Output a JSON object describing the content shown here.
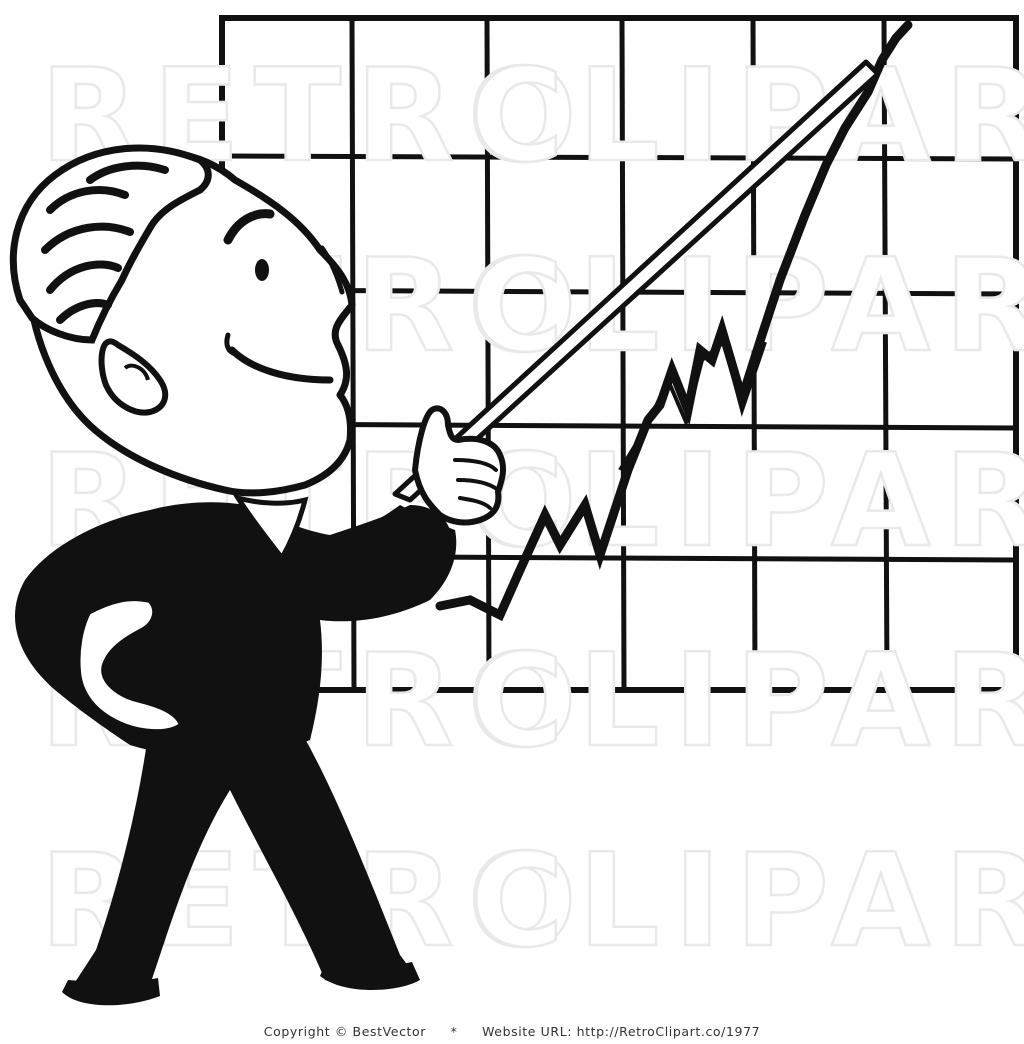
{
  "watermark": {
    "word_left": "RETRO",
    "word_right": "CLIPART",
    "color": "#e9e9e9"
  },
  "footer": {
    "copyright": "Copyright © BestVector",
    "separator": "*",
    "website": "Website URL: http://RetroClipart.co/1977"
  },
  "colors": {
    "ink": "#111111",
    "paper": "#ffffff"
  }
}
